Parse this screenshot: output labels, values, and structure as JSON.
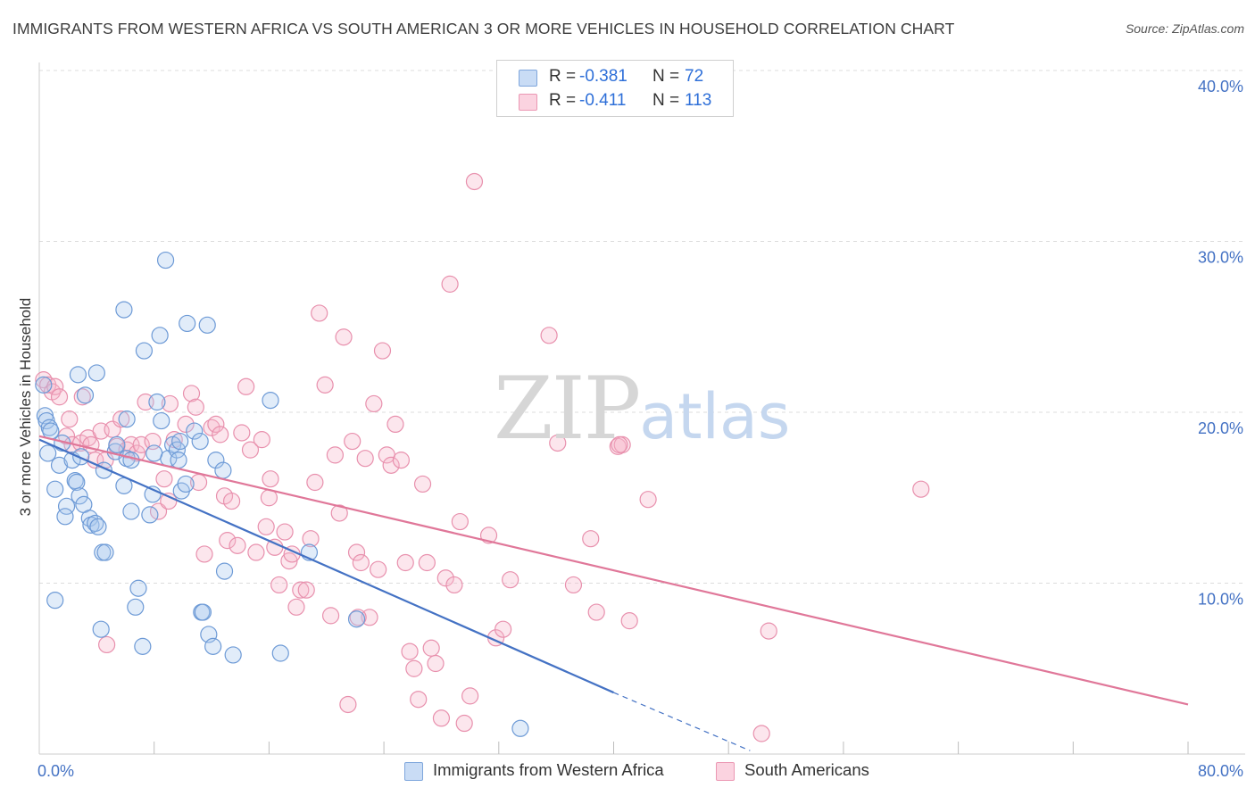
{
  "header": {
    "title": "IMMIGRANTS FROM WESTERN AFRICA VS SOUTH AMERICAN 3 OR MORE VEHICLES IN HOUSEHOLD CORRELATION CHART",
    "source": "Source: ZipAtlas.com"
  },
  "watermark": {
    "zip": "ZIP",
    "atlas": "atlas"
  },
  "legend": {
    "rows": [
      {
        "r_label": "R =",
        "r_value": "-0.381",
        "n_label": "N =",
        "n_value": "72",
        "color": "#a9c8ef"
      },
      {
        "r_label": "R =",
        "r_value": "-0.411",
        "n_label": "N =",
        "n_value": "113",
        "color": "#f7b6cb"
      }
    ]
  },
  "bottom_legend": {
    "items": [
      {
        "label": "Immigrants from Western Africa",
        "color": "#a9c8ef"
      },
      {
        "label": "South Americans",
        "color": "#f7b6cb"
      }
    ]
  },
  "chart_data": {
    "type": "scatter",
    "title": "IMMIGRANTS FROM WESTERN AFRICA VS SOUTH AMERICAN 3 OR MORE VEHICLES IN HOUSEHOLD CORRELATION CHART",
    "xlabel": "",
    "ylabel": "3 or more Vehicles in Household",
    "xlim": [
      0,
      80
    ],
    "ylim": [
      0,
      40
    ],
    "x_tick_labels": [
      "0.0%",
      "80.0%"
    ],
    "y_tick_labels": [
      "10.0%",
      "20.0%",
      "30.0%",
      "40.0%"
    ],
    "y_ticks": [
      10,
      20,
      30,
      40
    ],
    "grid": true,
    "legend_position": "top-center",
    "colors": {
      "blue": "#4472c4",
      "pink": "#e07799",
      "blue_fill": "#a9c8ef",
      "pink_fill": "#f7b6cb"
    },
    "series": [
      {
        "name": "Immigrants from Western Africa",
        "color": "#4472c4",
        "trend": {
          "x_start": 0,
          "y_start": 18.4,
          "x_solid_end": 40,
          "y_solid_end": 3.6,
          "x_dash_end": 49.5,
          "y_dash_end": 0.2
        },
        "points": [
          [
            0.3,
            21.6
          ],
          [
            0.4,
            19.8
          ],
          [
            0.5,
            19.5
          ],
          [
            0.6,
            17.6
          ],
          [
            0.7,
            19.1
          ],
          [
            1.1,
            9.0
          ],
          [
            1.1,
            15.5
          ],
          [
            1.4,
            16.9
          ],
          [
            1.6,
            18.2
          ],
          [
            1.9,
            14.5
          ],
          [
            1.8,
            13.9
          ],
          [
            2.3,
            17.2
          ],
          [
            2.5,
            16.0
          ],
          [
            2.6,
            15.9
          ],
          [
            2.7,
            22.2
          ],
          [
            2.8,
            15.1
          ],
          [
            2.9,
            17.4
          ],
          [
            3.2,
            21.0
          ],
          [
            3.1,
            14.6
          ],
          [
            3.5,
            13.8
          ],
          [
            3.6,
            13.4
          ],
          [
            3.9,
            13.5
          ],
          [
            4.0,
            22.3
          ],
          [
            4.1,
            13.3
          ],
          [
            4.3,
            7.3
          ],
          [
            4.4,
            11.8
          ],
          [
            4.5,
            16.6
          ],
          [
            4.6,
            11.8
          ],
          [
            5.3,
            17.7
          ],
          [
            5.4,
            18.1
          ],
          [
            5.9,
            15.7
          ],
          [
            6.1,
            19.6
          ],
          [
            6.1,
            17.3
          ],
          [
            6.4,
            17.2
          ],
          [
            6.4,
            14.2
          ],
          [
            6.7,
            8.6
          ],
          [
            6.9,
            9.7
          ],
          [
            7.2,
            6.3
          ],
          [
            7.3,
            23.6
          ],
          [
            7.7,
            14.0
          ],
          [
            7.9,
            15.2
          ],
          [
            8.2,
            20.6
          ],
          [
            8.4,
            24.5
          ],
          [
            8.5,
            19.5
          ],
          [
            8.8,
            28.9
          ],
          [
            9.0,
            17.3
          ],
          [
            9.3,
            18.1
          ],
          [
            9.6,
            17.8
          ],
          [
            9.7,
            17.2
          ],
          [
            9.8,
            18.3
          ],
          [
            9.9,
            15.4
          ],
          [
            10.2,
            15.8
          ],
          [
            10.3,
            25.2
          ],
          [
            10.8,
            18.9
          ],
          [
            11.2,
            18.3
          ],
          [
            11.3,
            8.3
          ],
          [
            11.4,
            8.3
          ],
          [
            11.7,
            25.1
          ],
          [
            11.8,
            7.0
          ],
          [
            12.1,
            6.3
          ],
          [
            12.3,
            17.2
          ],
          [
            12.8,
            16.6
          ],
          [
            12.9,
            10.7
          ],
          [
            13.5,
            5.8
          ],
          [
            16.1,
            20.7
          ],
          [
            16.8,
            5.9
          ],
          [
            18.8,
            11.8
          ],
          [
            22.1,
            7.9
          ],
          [
            33.5,
            1.5
          ],
          [
            5.9,
            26.0
          ],
          [
            0.8,
            18.9
          ],
          [
            8.0,
            17.6
          ]
        ]
      },
      {
        "name": "South Americans",
        "color": "#e07799",
        "trend": {
          "x_start": 0,
          "y_start": 18.6,
          "x_end": 80,
          "y_end": 2.9
        },
        "points": [
          [
            0.3,
            21.9
          ],
          [
            0.6,
            21.6
          ],
          [
            0.9,
            21.2
          ],
          [
            1.1,
            21.5
          ],
          [
            1.4,
            20.9
          ],
          [
            1.9,
            18.6
          ],
          [
            2.1,
            19.6
          ],
          [
            2.3,
            18.1
          ],
          [
            2.9,
            18.2
          ],
          [
            3.0,
            20.9
          ],
          [
            3.4,
            18.5
          ],
          [
            3.6,
            18.1
          ],
          [
            3.9,
            17.2
          ],
          [
            4.3,
            18.9
          ],
          [
            4.6,
            17.2
          ],
          [
            4.7,
            6.4
          ],
          [
            5.1,
            19.0
          ],
          [
            5.4,
            18.0
          ],
          [
            5.7,
            19.6
          ],
          [
            6.1,
            17.8
          ],
          [
            6.4,
            18.1
          ],
          [
            6.8,
            17.6
          ],
          [
            7.1,
            18.1
          ],
          [
            7.4,
            20.6
          ],
          [
            7.9,
            18.3
          ],
          [
            8.3,
            14.2
          ],
          [
            8.7,
            16.1
          ],
          [
            9.1,
            20.5
          ],
          [
            9.4,
            18.4
          ],
          [
            10.2,
            19.3
          ],
          [
            10.6,
            21.1
          ],
          [
            10.9,
            20.3
          ],
          [
            11.1,
            15.9
          ],
          [
            11.5,
            11.7
          ],
          [
            12.0,
            19.1
          ],
          [
            12.3,
            19.3
          ],
          [
            12.6,
            18.7
          ],
          [
            12.9,
            15.1
          ],
          [
            13.1,
            12.5
          ],
          [
            13.4,
            14.8
          ],
          [
            13.8,
            12.2
          ],
          [
            14.1,
            18.8
          ],
          [
            14.4,
            21.5
          ],
          [
            14.7,
            17.8
          ],
          [
            15.1,
            11.8
          ],
          [
            15.5,
            18.4
          ],
          [
            15.8,
            13.3
          ],
          [
            16.1,
            16.1
          ],
          [
            16.4,
            12.1
          ],
          [
            16.7,
            9.9
          ],
          [
            17.1,
            13.0
          ],
          [
            17.4,
            11.3
          ],
          [
            17.6,
            11.7
          ],
          [
            17.9,
            8.6
          ],
          [
            18.2,
            9.6
          ],
          [
            18.6,
            9.6
          ],
          [
            18.9,
            12.6
          ],
          [
            19.2,
            15.9
          ],
          [
            19.5,
            25.8
          ],
          [
            19.9,
            21.6
          ],
          [
            20.3,
            8.1
          ],
          [
            20.6,
            17.5
          ],
          [
            20.9,
            14.1
          ],
          [
            21.2,
            24.4
          ],
          [
            21.5,
            2.9
          ],
          [
            21.8,
            18.3
          ],
          [
            22.1,
            11.8
          ],
          [
            22.4,
            11.2
          ],
          [
            22.7,
            17.3
          ],
          [
            23.0,
            8.0
          ],
          [
            23.3,
            20.5
          ],
          [
            23.6,
            10.8
          ],
          [
            23.9,
            23.6
          ],
          [
            24.2,
            17.5
          ],
          [
            24.5,
            16.9
          ],
          [
            24.8,
            19.3
          ],
          [
            25.2,
            17.2
          ],
          [
            25.5,
            11.2
          ],
          [
            25.8,
            6.0
          ],
          [
            26.1,
            5.0
          ],
          [
            26.4,
            3.2
          ],
          [
            26.7,
            15.8
          ],
          [
            27.0,
            11.2
          ],
          [
            27.3,
            6.2
          ],
          [
            27.6,
            5.3
          ],
          [
            28.0,
            2.1
          ],
          [
            28.3,
            10.3
          ],
          [
            28.6,
            27.5
          ],
          [
            28.9,
            9.9
          ],
          [
            29.3,
            13.6
          ],
          [
            29.6,
            1.8
          ],
          [
            30.0,
            3.4
          ],
          [
            30.3,
            33.5
          ],
          [
            31.3,
            12.8
          ],
          [
            31.8,
            6.8
          ],
          [
            32.3,
            7.3
          ],
          [
            32.8,
            10.2
          ],
          [
            36.1,
            18.2
          ],
          [
            35.5,
            24.5
          ],
          [
            37.2,
            9.9
          ],
          [
            38.4,
            12.6
          ],
          [
            38.8,
            8.3
          ],
          [
            40.3,
            18.0
          ],
          [
            40.6,
            18.1
          ],
          [
            41.1,
            7.8
          ],
          [
            42.4,
            14.9
          ],
          [
            50.3,
            1.2
          ],
          [
            50.8,
            7.2
          ],
          [
            61.4,
            15.5
          ],
          [
            40.4,
            18.1
          ],
          [
            22.2,
            8.0
          ],
          [
            9.0,
            14.8
          ],
          [
            16.0,
            15.0
          ]
        ]
      }
    ]
  }
}
